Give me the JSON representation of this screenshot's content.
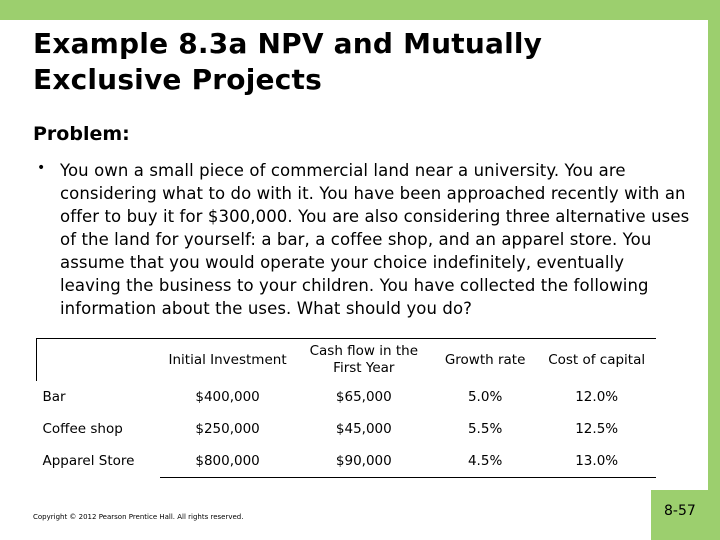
{
  "slide": {
    "title": "Example 8.3a NPV and Mutually Exclusive Projects",
    "heading": "Problem:",
    "bullet_symbol": "•",
    "body": "You own a small piece of commercial land near a university. You are considering what to do with it. You have been approached recently with an offer to buy it for $300,000.  You are also considering three alternative uses of the land for yourself: a bar, a coffee shop, and an apparel store. You assume that you would operate your choice indefinitely, eventually leaving the business to your children. You have collected the following information about the uses. What should you do?",
    "copyright": "Copyright © 2012 Pearson Prentice Hall. All rights reserved.",
    "page_number": "8-57"
  },
  "table": {
    "headers": [
      "",
      "Initial Investment",
      "Cash flow in the First Year",
      "Growth rate",
      "Cost of capital"
    ],
    "rows": [
      [
        "Bar",
        "$400,000",
        "$65,000",
        "5.0%",
        "12.0%"
      ],
      [
        "Coffee shop",
        "$250,000",
        "$45,000",
        "5.5%",
        "12.5%"
      ],
      [
        "Apparel Store",
        "$800,000",
        "$90,000",
        "4.5%",
        "13.0%"
      ]
    ]
  },
  "colors": {
    "accent_green": "#9ccf6e"
  }
}
